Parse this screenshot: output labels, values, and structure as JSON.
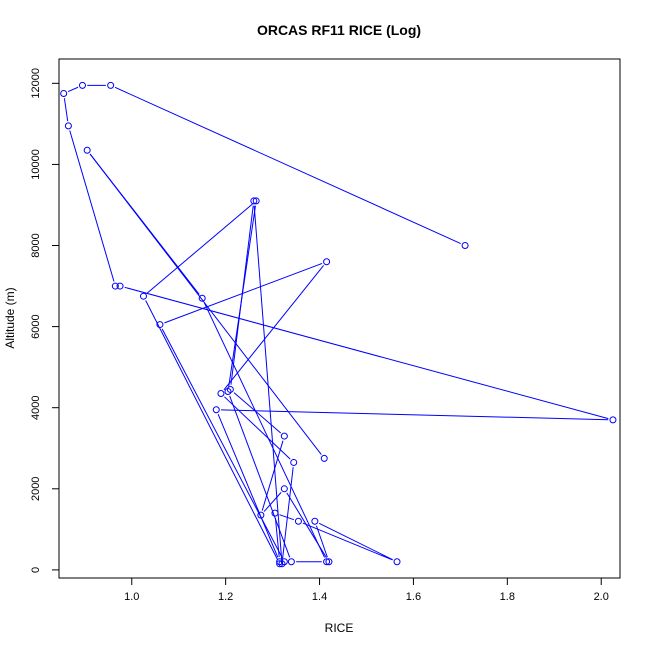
{
  "chart_data": {
    "type": "line",
    "title": "ORCAS RF11 RICE (Log)",
    "xlabel": "RICE",
    "ylabel": "Altitude (m)",
    "xlim": [
      0.845,
      2.04
    ],
    "ylim": [
      -200,
      12600
    ],
    "xticks": [
      1.0,
      1.2,
      1.4,
      1.6,
      1.8,
      2.0
    ],
    "xtick_labels": [
      "1.0",
      "1.2",
      "1.4",
      "1.6",
      "1.8",
      "2.0"
    ],
    "yticks": [
      0,
      2000,
      4000,
      6000,
      8000,
      10000,
      12000
    ],
    "ytick_labels": [
      "0",
      "2000",
      "4000",
      "6000",
      "8000",
      "10000",
      "12000"
    ],
    "grid": false,
    "series_color": "#0000ff",
    "series": [
      {
        "x": [
          1.71,
          0.955,
          0.895,
          0.855,
          0.865,
          0.965,
          0.975,
          2.025,
          1.18,
          1.315,
          1.305,
          1.355,
          1.565,
          1.39,
          1.42,
          1.325,
          1.275,
          1.325,
          1.21,
          1.26,
          1.32,
          1.345,
          1.19,
          1.415,
          1.06,
          1.325,
          1.315,
          1.025,
          1.265,
          1.205,
          1.34,
          1.415,
          1.15,
          0.905,
          1.41
        ],
        "y": [
          8000,
          11950,
          11950,
          11750,
          10950,
          7000,
          7000,
          3700,
          3950,
          200,
          1400,
          1200,
          200,
          1200,
          200,
          2000,
          1350,
          3300,
          4450,
          9100,
          150,
          2650,
          4350,
          7600,
          6050,
          200,
          150,
          6750,
          9100,
          4400,
          200,
          200,
          6700,
          10350,
          2750
        ]
      }
    ]
  }
}
